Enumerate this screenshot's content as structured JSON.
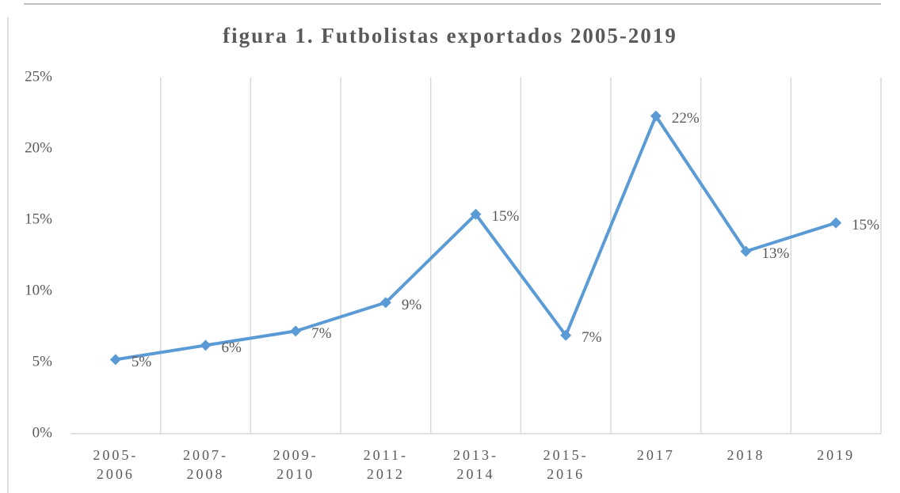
{
  "chart_data": {
    "type": "line",
    "title": "figura 1. Futbolistas exportados  2005-2019",
    "categories": [
      "2005-2006",
      "2007-2008",
      "2009-2010",
      "2011-2012",
      "2013-2014",
      "2015-2016",
      "2017",
      "2018",
      "2019"
    ],
    "series": [
      {
        "name": "Futbolistas exportados",
        "color": "#5b9bd5",
        "values": [
          5.2,
          6.2,
          7.2,
          9.2,
          15.4,
          6.9,
          22.3,
          12.8,
          14.8
        ],
        "value_labels": [
          "5%",
          "6%",
          "7%",
          "9%",
          "15%",
          "7%",
          "22%",
          "13%",
          "15%"
        ]
      }
    ],
    "ylim": [
      0,
      25
    ],
    "yticks": [
      {
        "value": 0,
        "label": "0%"
      },
      {
        "value": 5,
        "label": "5%"
      },
      {
        "value": 10,
        "label": "10%"
      },
      {
        "value": 15,
        "label": "15%"
      },
      {
        "value": 20,
        "label": "20%"
      },
      {
        "value": 25,
        "label": "25%"
      }
    ],
    "grid": "x"
  }
}
